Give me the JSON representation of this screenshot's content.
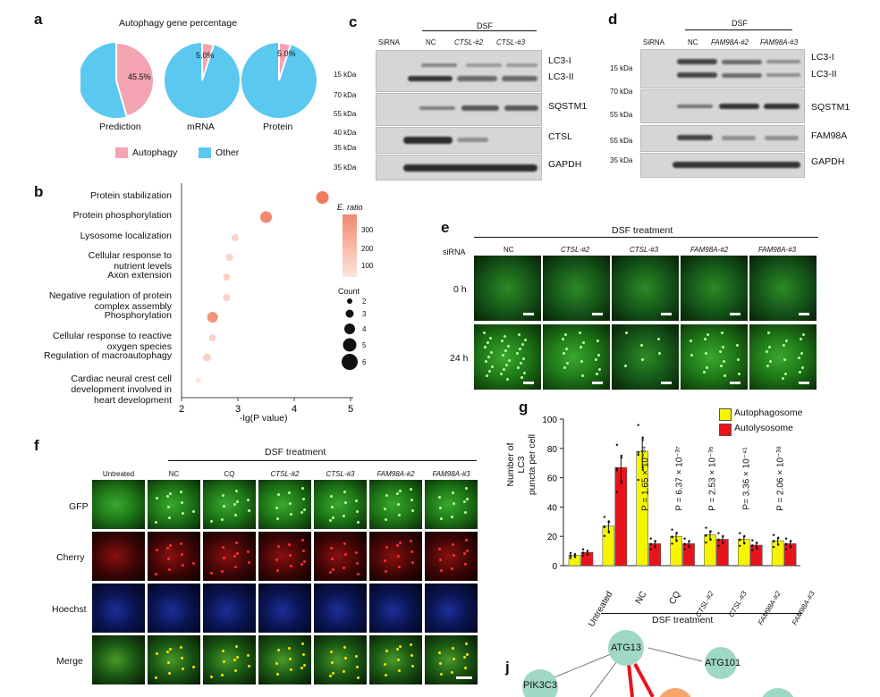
{
  "panel_letters": {
    "a": "a",
    "b": "b",
    "c": "c",
    "d": "d",
    "e": "e",
    "f": "f",
    "g": "g",
    "j": "j"
  },
  "panel_a": {
    "title": "Autophagy gene percentage",
    "pies": [
      {
        "label": "Prediction",
        "autophagy_pct_label": "45.5%",
        "autophagy": 45.5
      },
      {
        "label": "mRNA",
        "autophagy_pct_label": "5.0%",
        "autophagy": 5.0
      },
      {
        "label": "Protein",
        "autophagy_pct_label": "5.0%",
        "autophagy": 5.0
      }
    ],
    "legend": [
      {
        "name": "Autophagy",
        "color": "#f4a3b2"
      },
      {
        "name": "Other",
        "color": "#5bc8f0"
      }
    ]
  },
  "panel_b": {
    "terms": [
      "Protein stabilization",
      "Protein phosphorylation",
      "Lysosome localization",
      "Cellular response to\nnutrient levels",
      "Axon extension",
      "Negative regulation of protein\ncomplex assembly",
      "Phosphorylation",
      "Cellular response to reactive\noxygen species",
      "Regulation of macroautophagy",
      "Cardiac neural crest cell\ndevelopment involved in\nheart development"
    ],
    "xlabel": "-lg(P value)",
    "xticks": [
      "2",
      "3",
      "4",
      "5"
    ],
    "legend_ratio_title": "E. ratio",
    "legend_ratio_ticks": [
      "300",
      "200",
      "100"
    ],
    "legend_count_title": "Count",
    "legend_count_ticks": [
      "2",
      "3",
      "4",
      "5",
      "6"
    ]
  },
  "panel_c": {
    "header_group": "DSF",
    "lanes": [
      "SiRNA",
      "NC",
      "CTSL-#2",
      "CTSL-#3"
    ],
    "left_markers": [
      "15 kDa",
      "70 kDa",
      "55 kDa",
      "40 kDa",
      "35 kDa",
      "35 kDa"
    ],
    "right_labels": [
      "LC3-I",
      "LC3-II",
      "SQSTM1",
      "CTSL",
      "GAPDH"
    ]
  },
  "panel_d": {
    "header_group": "DSF",
    "lanes": [
      "SiRNA",
      "NC",
      "FAM98A-#2",
      "FAM98A-#3"
    ],
    "left_markers": [
      "15 kDa",
      "70 kDa",
      "55 kDa",
      "55 kDa",
      "35 kDa"
    ],
    "right_labels": [
      "LC3-I",
      "LC3-II",
      "SQSTM1",
      "FAM98A",
      "GAPDH"
    ]
  },
  "panel_e": {
    "title": "DSF treatment",
    "row_header": "siRNA",
    "columns": [
      "NC",
      "CTSL-#2",
      "CTSL-#3",
      "FAM98A-#2",
      "FAM98A-#3"
    ],
    "rows": [
      "0 h",
      "24 h"
    ]
  },
  "panel_f": {
    "title": "DSF treatment",
    "columns": [
      "Untreated",
      "NC",
      "CQ",
      "CTSL-#2",
      "CTSL-#3",
      "FAM98A-#2",
      "FAM98A-#3"
    ],
    "rows": [
      "GFP",
      "Cherry",
      "Hoechst",
      "Merge"
    ]
  },
  "panel_g": {
    "ylabel": "Number of LC3\npuncta per cell",
    "xgroup_label": "DSF treatment",
    "legend": [
      {
        "name": "Autophagosome",
        "color": "#f5f500"
      },
      {
        "name": "Autolysosome",
        "color": "#e8141b"
      }
    ],
    "pvalues": [
      "P = 1.65 × 10⁻³⁴",
      "P = 6.37 × 10⁻³⁷",
      "P = 2.53 × 10⁻³⁵",
      "P= 3.36 × 10⁻⁴¹",
      "P = 2.06 × 10⁻³⁸"
    ]
  },
  "chart_data": {
    "type": "bar",
    "categories": [
      "Untreated",
      "NC",
      "CQ",
      "CTSL-#2",
      "CTSL-#3",
      "FAM98A-#2",
      "FAM98A-#3"
    ],
    "series": [
      {
        "name": "Autophagosome",
        "values": [
          7,
          27,
          78,
          20,
          21,
          18,
          17
        ]
      },
      {
        "name": "Autolysosome",
        "values": [
          9,
          67,
          15,
          15,
          18,
          14,
          15
        ]
      }
    ],
    "ylim": [
      0,
      100
    ],
    "yticks": [
      "0",
      "20",
      "40",
      "60",
      "80",
      "100"
    ],
    "ylabel": "Number of LC3\npuncta per cell"
  },
  "panel_j": {
    "nodes": [
      "ATG13",
      "ATG101",
      "PIK3C3"
    ]
  }
}
